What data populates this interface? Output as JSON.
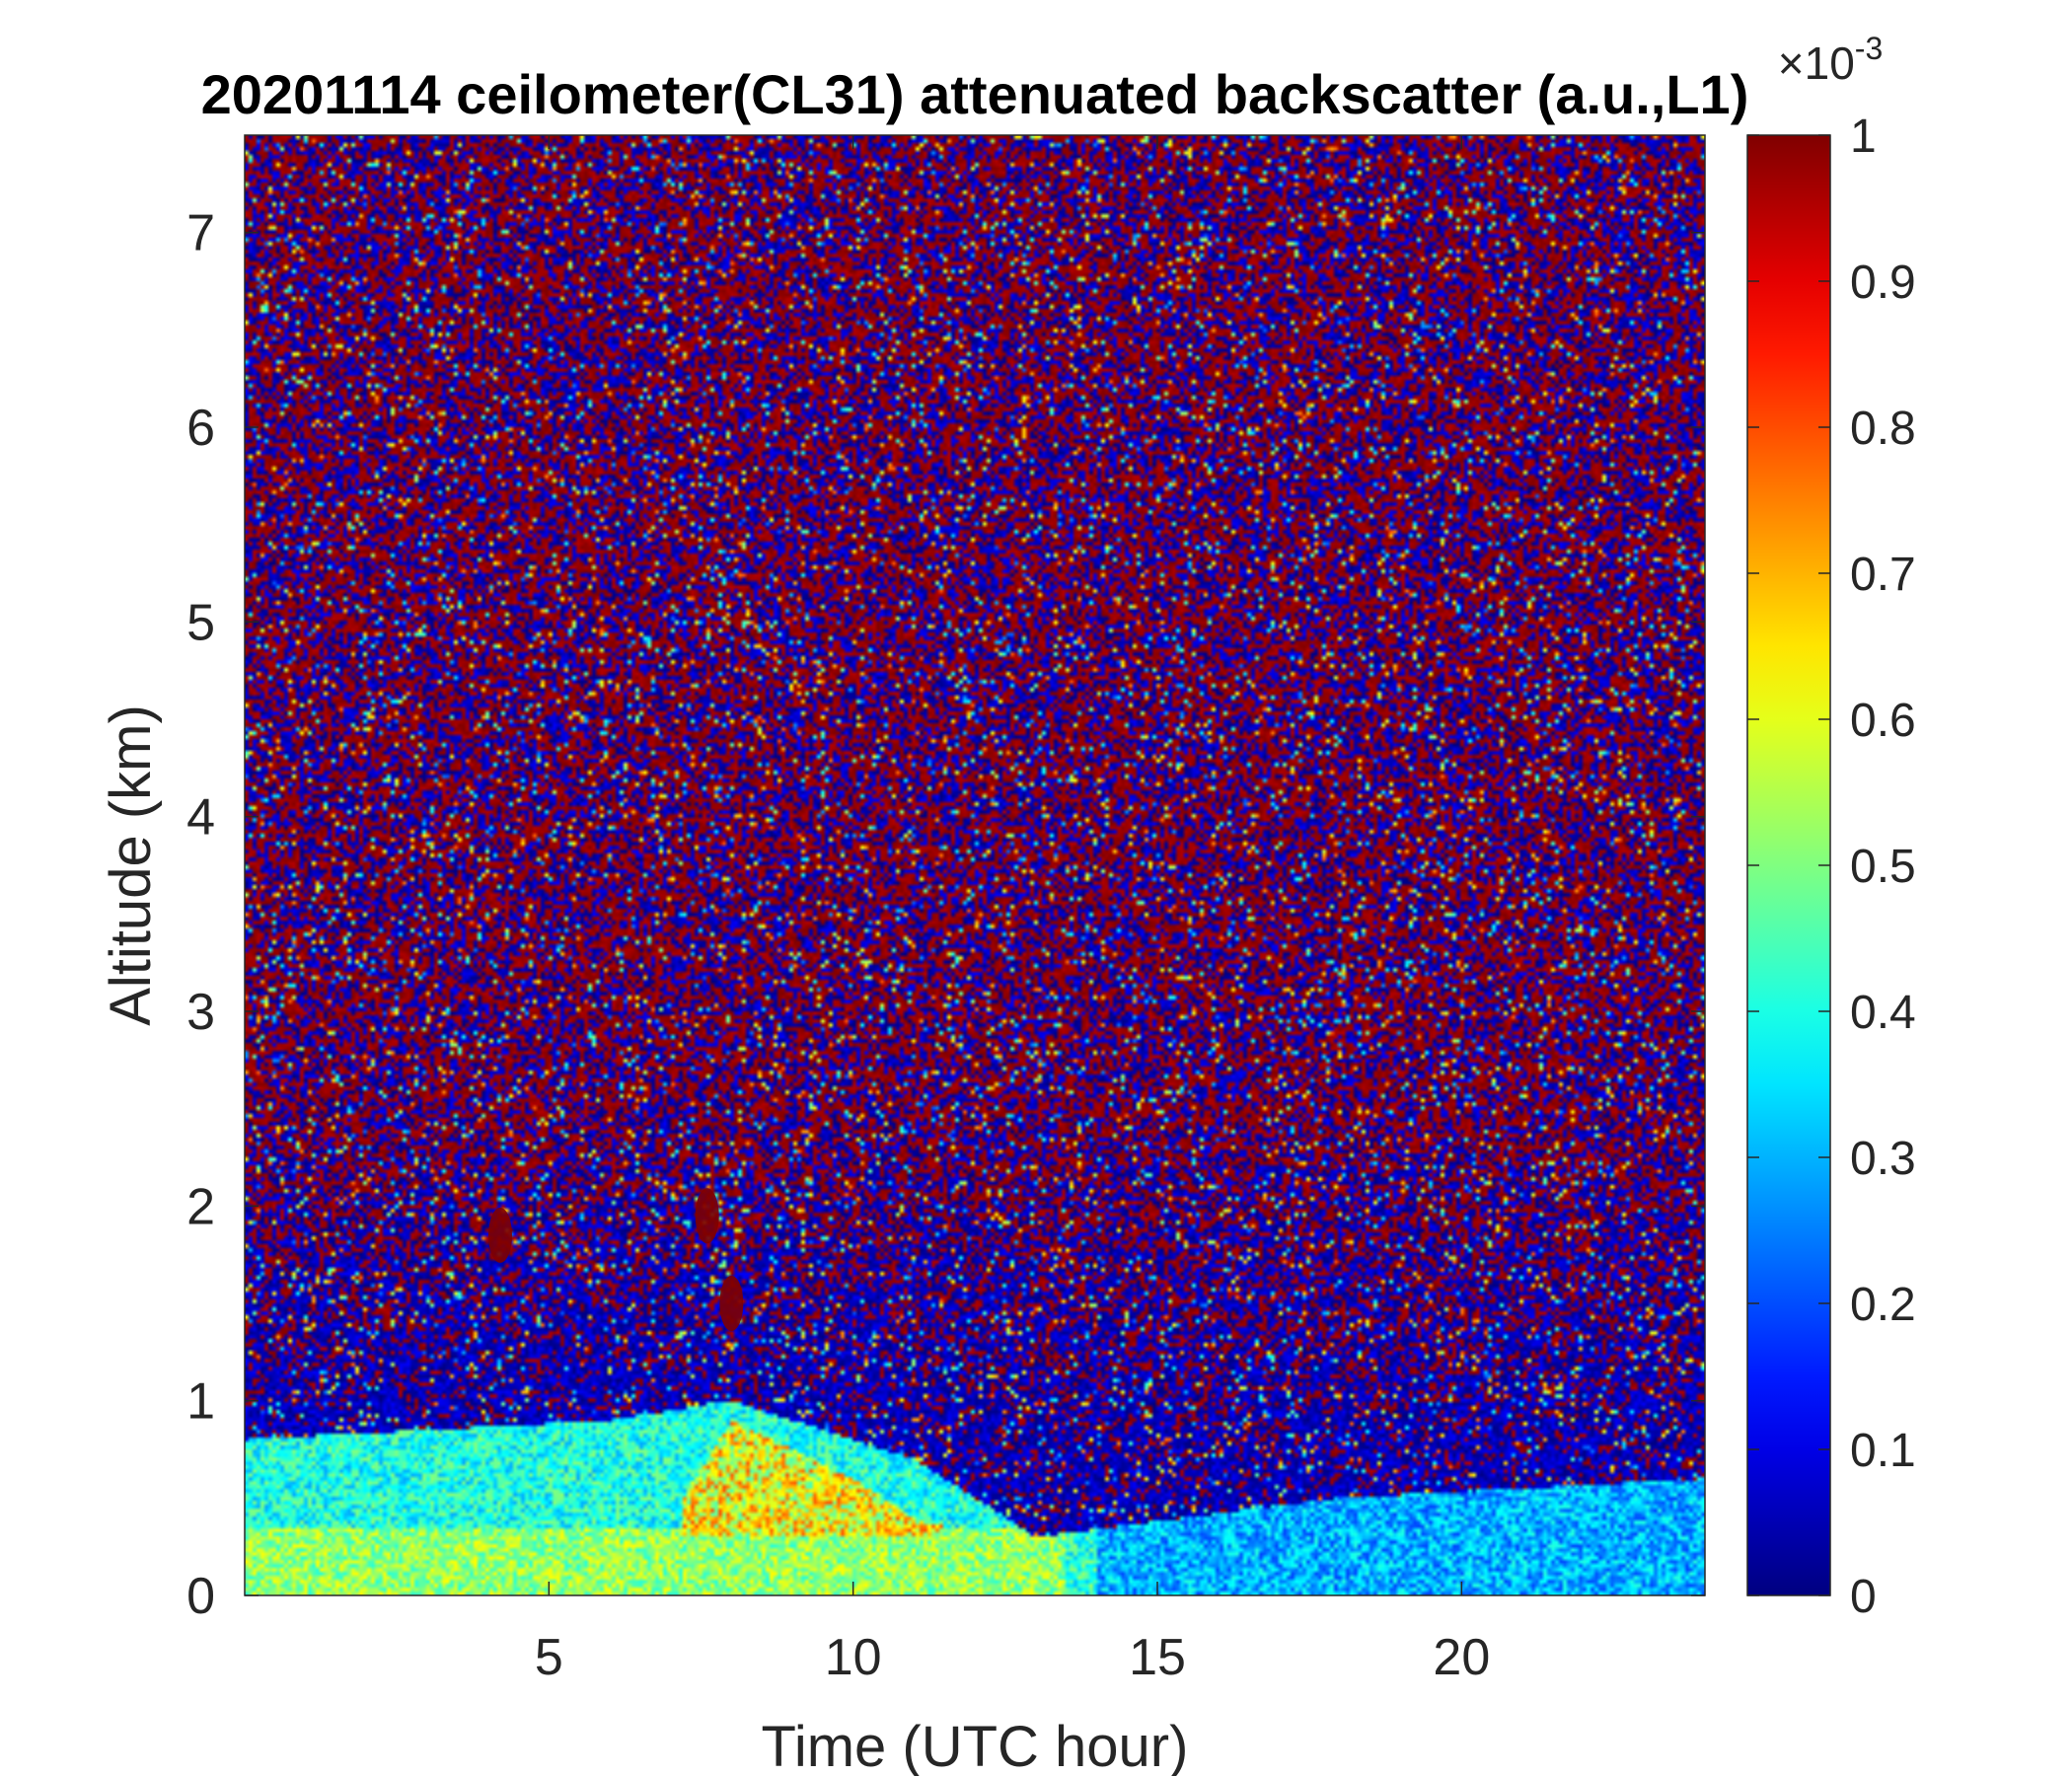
{
  "chart_data": {
    "type": "heatmap",
    "title": "20201114 ceilometer(CL31) attenuated backscatter (a.u.,L1)",
    "xlabel": "Time (UTC hour)",
    "ylabel": "Altitude (km)",
    "xlim": [
      0,
      24
    ],
    "ylim": [
      0,
      7.5
    ],
    "xticks": [
      "5",
      "10",
      "15",
      "20"
    ],
    "yticks": [
      "0",
      "1",
      "2",
      "3",
      "4",
      "5",
      "6",
      "7"
    ],
    "colorbar": {
      "colormap": "jet",
      "range": [
        0,
        0.001
      ],
      "exponent_label": "×10",
      "exponent_power": "-3",
      "ticks": [
        "0",
        "0.1",
        "0.2",
        "0.3",
        "0.4",
        "0.5",
        "0.6",
        "0.7",
        "0.8",
        "0.9",
        "1"
      ]
    },
    "features": {
      "boundary_layer_top_km": [
        [
          0,
          0.8
        ],
        [
          6,
          0.9
        ],
        [
          8,
          1.0
        ],
        [
          11,
          0.7
        ],
        [
          13,
          0.3
        ],
        [
          18,
          0.5
        ],
        [
          24,
          0.6
        ]
      ],
      "aerosol_enhanced_layer_km": [
        [
          7.2,
          0.5
        ],
        [
          8,
          0.9
        ],
        [
          10,
          0.6
        ],
        [
          11,
          0.4
        ],
        [
          12,
          0.3
        ]
      ],
      "cloud_patches": [
        {
          "time_h": 4.2,
          "altitude_km": 1.85
        },
        {
          "time_h": 7.6,
          "altitude_km": 1.95
        },
        {
          "time_h": 8.0,
          "altitude_km": 1.5
        }
      ],
      "noise_region_above_km": 1.5
    }
  }
}
